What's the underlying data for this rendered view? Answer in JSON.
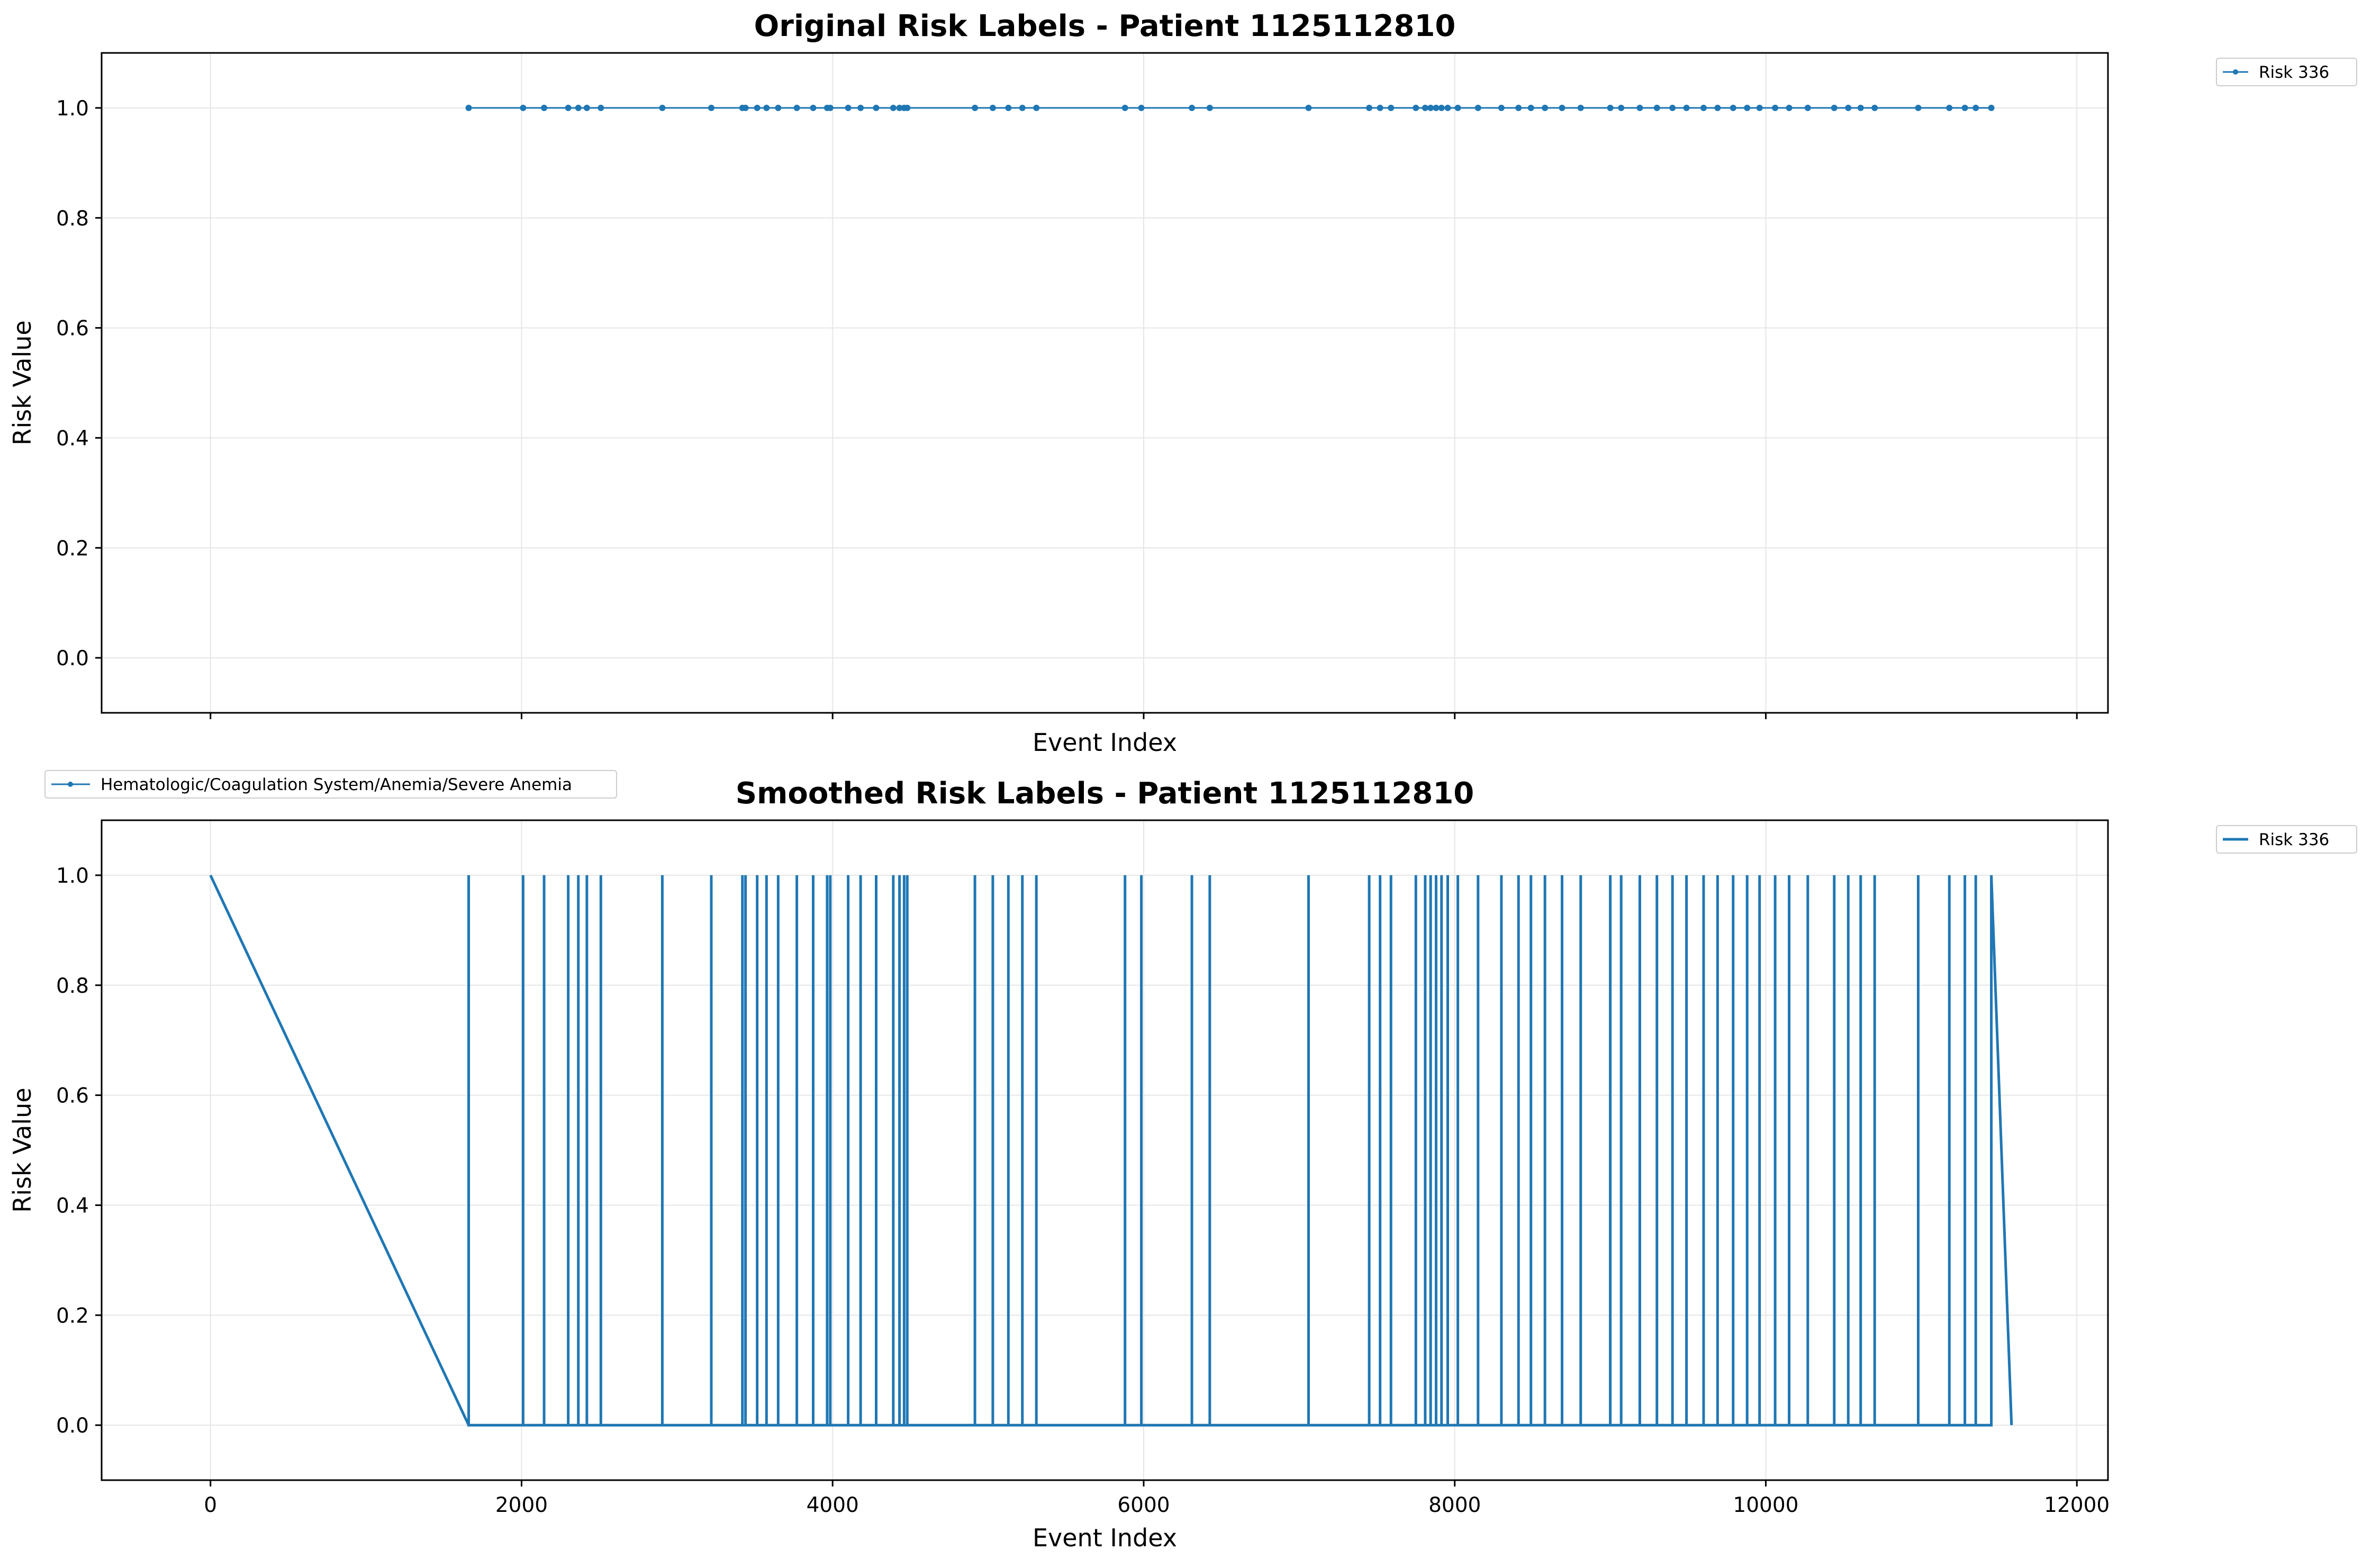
{
  "colors": {
    "series": "#1f77b4",
    "grid": "#e6e6e6",
    "axes": "#000000",
    "legend_border": "#cccccc"
  },
  "chart_data": [
    {
      "type": "line",
      "title": "Original Risk Labels - Patient 1125112810",
      "xlabel": "Event Index",
      "ylabel": "Risk Value",
      "xlim": [
        -700,
        12200
      ],
      "ylim": [
        -0.1,
        1.1
      ],
      "xticks": [
        0,
        2000,
        4000,
        6000,
        8000,
        10000,
        12000
      ],
      "yticks": [
        "0.0",
        "0.2",
        "0.4",
        "0.6",
        "0.8",
        "1.0"
      ],
      "show_xtick_labels": false,
      "grid": true,
      "marker": "dot",
      "legend_position": "outside-top-right",
      "series": [
        {
          "name": "Risk 336",
          "x": [
            1660,
            2010,
            2145,
            2300,
            2365,
            2420,
            2510,
            2905,
            3220,
            3420,
            3440,
            3515,
            3575,
            3650,
            3770,
            3875,
            3965,
            3985,
            4100,
            4180,
            4280,
            4390,
            4430,
            4460,
            4480,
            4915,
            5030,
            5130,
            5220,
            5310,
            5880,
            5985,
            6310,
            6425,
            7060,
            7450,
            7520,
            7590,
            7750,
            7810,
            7845,
            7880,
            7915,
            7955,
            8020,
            8150,
            8300,
            8410,
            8490,
            8580,
            8690,
            8810,
            9000,
            9070,
            9190,
            9300,
            9400,
            9490,
            9600,
            9690,
            9790,
            9880,
            9960,
            10060,
            10150,
            10270,
            10440,
            10530,
            10610,
            10700,
            10980,
            11180,
            11280,
            11350,
            11450
          ],
          "values": [
            1,
            1,
            1,
            1,
            1,
            1,
            1,
            1,
            1,
            1,
            1,
            1,
            1,
            1,
            1,
            1,
            1,
            1,
            1,
            1,
            1,
            1,
            1,
            1,
            1,
            1,
            1,
            1,
            1,
            1,
            1,
            1,
            1,
            1,
            1,
            1,
            1,
            1,
            1,
            1,
            1,
            1,
            1,
            1,
            1,
            1,
            1,
            1,
            1,
            1,
            1,
            1,
            1,
            1,
            1,
            1,
            1,
            1,
            1,
            1,
            1,
            1,
            1,
            1,
            1,
            1,
            1,
            1,
            1,
            1,
            1,
            1,
            1,
            1,
            1
          ]
        }
      ]
    },
    {
      "type": "line",
      "title": "Smoothed Risk Labels - Patient 1125112810",
      "xlabel": "Event Index",
      "ylabel": "Risk Value",
      "xlim": [
        -700,
        12200
      ],
      "ylim": [
        -0.1,
        1.1
      ],
      "xticks": [
        0,
        2000,
        4000,
        6000,
        8000,
        10000,
        12000
      ],
      "yticks": [
        "0.0",
        "0.2",
        "0.4",
        "0.6",
        "0.8",
        "1.0"
      ],
      "show_xtick_labels": true,
      "grid": true,
      "marker": "none",
      "legend_position": "outside-top-right",
      "series": [
        {
          "name": "Risk 336",
          "spikes_at": [
            1660,
            2010,
            2145,
            2300,
            2365,
            2420,
            2510,
            2905,
            3220,
            3420,
            3440,
            3515,
            3575,
            3650,
            3770,
            3875,
            3965,
            3985,
            4100,
            4180,
            4280,
            4390,
            4430,
            4460,
            4480,
            4915,
            5030,
            5130,
            5220,
            5310,
            5880,
            5985,
            6310,
            6425,
            7060,
            7450,
            7520,
            7590,
            7750,
            7810,
            7845,
            7880,
            7915,
            7955,
            8020,
            8150,
            8300,
            8410,
            8490,
            8580,
            8690,
            8810,
            9000,
            9070,
            9190,
            9300,
            9400,
            9490,
            9600,
            9690,
            9790,
            9880,
            9960,
            10060,
            10150,
            10270,
            10440,
            10530,
            10610,
            10700,
            10980,
            11180,
            11280,
            11350,
            11450
          ],
          "start": [
            0,
            1
          ],
          "end": [
            11580,
            0
          ]
        }
      ]
    }
  ],
  "extra_legend": {
    "label": "Hematologic/Coagulation System/Anemia/Severe Anemia"
  }
}
